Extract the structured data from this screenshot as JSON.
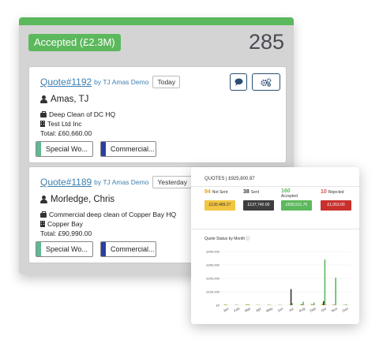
{
  "column": {
    "status_label": "Accepted (£2.3M)",
    "count": "285",
    "accent": "#5cb85c"
  },
  "quotes": [
    {
      "number": "Quote#1192",
      "by": "by TJ Amas Demo",
      "date": "Today",
      "contact": "Amas, TJ",
      "job": "Deep Clean of DC HQ",
      "company": "Test Ltd Inc",
      "total": "Total: £60,660.00",
      "tags": [
        "Special Wo...",
        "Commercial..."
      ]
    },
    {
      "number": "Quote#1189",
      "by": "by TJ Amas Demo",
      "date": "Yesterday",
      "contact": "Morledge, Chris",
      "job": "Commercial deep clean of Copper Bay HQ",
      "company": "Copper Bay",
      "total": "Total: £90,990.00",
      "tags": [
        "Special Wo...",
        "Commercial..."
      ]
    }
  ],
  "icons": {
    "chat": "chat-bubble-icon",
    "settings": "gears-icon",
    "person": "person-icon",
    "job": "briefcase-icon",
    "company": "building-icon"
  },
  "dashboard": {
    "title": "QUOTES | £925,800.97",
    "stats": [
      {
        "count": "94",
        "label": "Not Sent",
        "amount": "£130,489.27",
        "count_color": "#e0a81a",
        "pill_bg": "#f3c542",
        "pill_fg": "#333"
      },
      {
        "count": "38",
        "label": "Sent",
        "amount": "£137,740.00",
        "count_color": "#333333",
        "pill_bg": "#3d3d3d",
        "pill_fg": "#fff"
      },
      {
        "count": "160",
        "label": "Accepted",
        "amount": "£656,511.70",
        "count_color": "#5cb85c",
        "pill_bg": "#5cb85c",
        "pill_fg": "#fff"
      },
      {
        "count": "10",
        "label": "Rejected",
        "amount": "£1,053.00",
        "count_color": "#d9534f",
        "pill_bg": "#c9302c",
        "pill_fg": "#fff"
      }
    ],
    "chart_title": "Quote Status by Month ⓘ"
  },
  "chart_data": {
    "type": "bar",
    "title": "Quote Status by Month ⓘ",
    "y_ticks": [
      "£400,000",
      "£300,000",
      "£200,000",
      "£100,000",
      "£0"
    ],
    "ylim": [
      0,
      400000
    ],
    "categories": [
      "Jan",
      "Feb",
      "Mar",
      "Apr",
      "May",
      "Jun",
      "Jul",
      "Aug",
      "Sep",
      "Oct",
      "Nov",
      "Dec"
    ],
    "series": [
      {
        "color": "#e0a81a",
        "values": [
          6000,
          4000,
          8000,
          3000,
          5000,
          3000,
          4000,
          5000,
          10000,
          12000,
          6000,
          4000
        ]
      },
      {
        "color": "#333333",
        "values": [
          2000,
          1000,
          2000,
          1000,
          1000,
          1000,
          120000,
          5000,
          3000,
          30000,
          2000,
          1000
        ]
      },
      {
        "color": "#5cb85c",
        "values": [
          3000,
          2000,
          5000,
          2000,
          3000,
          2000,
          15000,
          25000,
          20000,
          340000,
          205000,
          6000
        ]
      },
      {
        "color": "#d9534f",
        "values": [
          0,
          0,
          1000,
          0,
          0,
          0,
          0,
          1000,
          0,
          2000,
          0,
          0
        ]
      }
    ]
  }
}
